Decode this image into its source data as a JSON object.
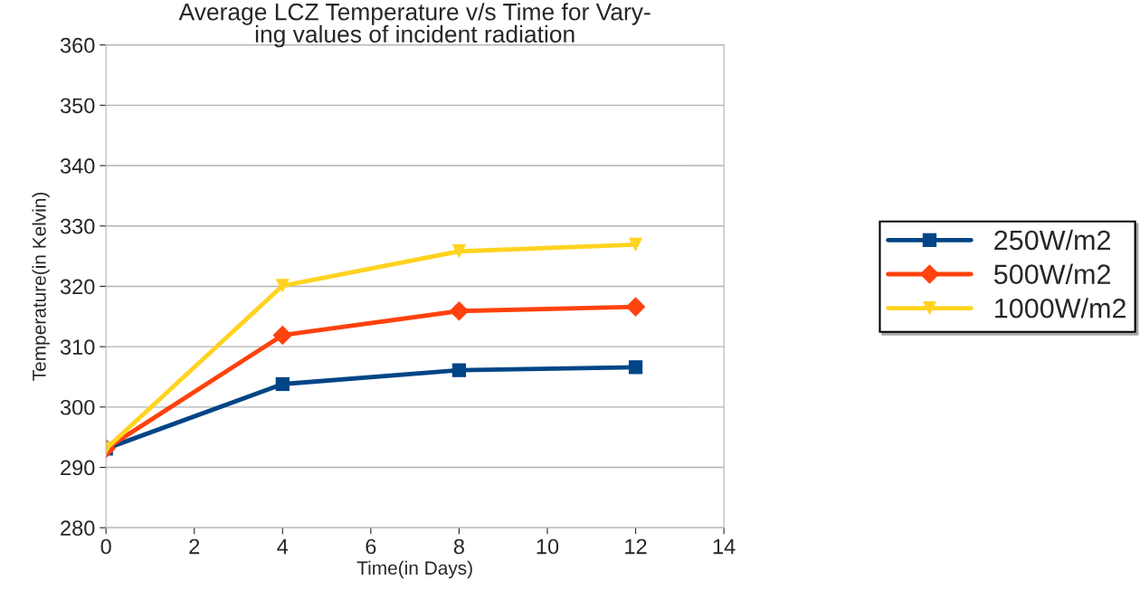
{
  "chart_data": {
    "type": "line",
    "title": "Average LCZ Temperature v/s Time for Vary-\ning values of incident radiation",
    "xlabel": "Time(in Days)",
    "ylabel": "Temperature(in Kelvin)",
    "x": [
      0,
      4,
      8,
      12
    ],
    "series": [
      {
        "name": "250W/m2",
        "color": "#004586",
        "marker": "square",
        "values": [
          293.1,
          303.8,
          306.1,
          306.6
        ]
      },
      {
        "name": "500W/m2",
        "color": "#ff420e",
        "marker": "diamond",
        "values": [
          293.1,
          311.9,
          315.9,
          316.6
        ]
      },
      {
        "name": "1000W/m2",
        "color": "#ffd320",
        "marker": "triangle",
        "values": [
          293.1,
          320.1,
          325.8,
          326.9
        ]
      }
    ],
    "xlim": [
      0,
      14
    ],
    "xticks": [
      0,
      2,
      4,
      6,
      8,
      10,
      12,
      14
    ],
    "ylim": [
      280,
      360
    ],
    "yticks": [
      280,
      290,
      300,
      310,
      320,
      330,
      340,
      350,
      360
    ],
    "grid": "y",
    "legend": "right",
    "line_style": "solid"
  }
}
